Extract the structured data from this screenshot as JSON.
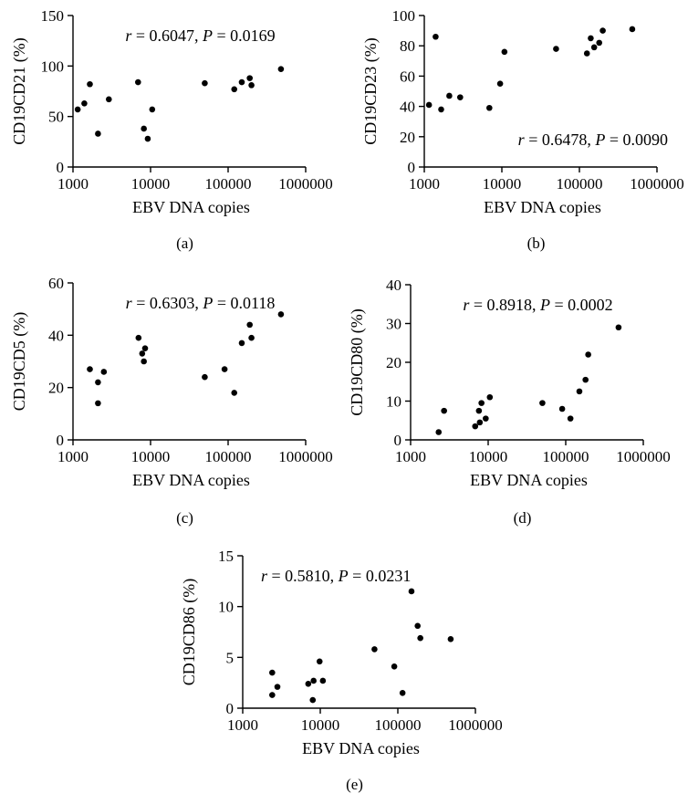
{
  "chart_data": [
    {
      "type": "scatter",
      "panel_label": "(a)",
      "xlabel": "EBV DNA copies",
      "ylabel": "CD19CD21 (%)",
      "x_scale": "log",
      "xlim": [
        1000,
        1000000
      ],
      "x_ticks": [
        1000,
        10000,
        100000,
        1000000
      ],
      "x_tick_labels": [
        "1000",
        "10000",
        "100000",
        "1000000"
      ],
      "ylim": [
        0,
        150
      ],
      "y_ticks": [
        0,
        50,
        100,
        150
      ],
      "y_tick_labels": [
        "0",
        "50",
        "100",
        "150"
      ],
      "annotation": {
        "r": "r",
        "eq1": " = 0.6047, ",
        "p": "P",
        "eq2": " = 0.0169"
      },
      "annotation_position": "top-center",
      "points": [
        {
          "x": 1150,
          "y": 57
        },
        {
          "x": 1400,
          "y": 63
        },
        {
          "x": 1650,
          "y": 82
        },
        {
          "x": 2100,
          "y": 33
        },
        {
          "x": 2900,
          "y": 67
        },
        {
          "x": 6900,
          "y": 84
        },
        {
          "x": 8200,
          "y": 38
        },
        {
          "x": 9200,
          "y": 28
        },
        {
          "x": 10500,
          "y": 57
        },
        {
          "x": 50000,
          "y": 83
        },
        {
          "x": 120000,
          "y": 77
        },
        {
          "x": 150000,
          "y": 84
        },
        {
          "x": 190000,
          "y": 88
        },
        {
          "x": 200000,
          "y": 81
        },
        {
          "x": 480000,
          "y": 97
        }
      ]
    },
    {
      "type": "scatter",
      "panel_label": "(b)",
      "xlabel": "EBV DNA copies",
      "ylabel": "CD19CD23 (%)",
      "x_scale": "log",
      "xlim": [
        1000,
        1000000
      ],
      "x_ticks": [
        1000,
        10000,
        100000,
        1000000
      ],
      "x_tick_labels": [
        "1000",
        "10000",
        "100000",
        "1000000"
      ],
      "ylim": [
        0,
        100
      ],
      "y_ticks": [
        0,
        20,
        40,
        60,
        80,
        100
      ],
      "y_tick_labels": [
        "0",
        "20",
        "40",
        "60",
        "80",
        "100"
      ],
      "annotation": {
        "r": "r",
        "eq1": " = 0.6478, ",
        "p": "P",
        "eq2": " = 0.0090"
      },
      "annotation_position": "bottom-right",
      "points": [
        {
          "x": 1150,
          "y": 41
        },
        {
          "x": 1400,
          "y": 86
        },
        {
          "x": 1650,
          "y": 38
        },
        {
          "x": 2100,
          "y": 47
        },
        {
          "x": 2900,
          "y": 46
        },
        {
          "x": 6900,
          "y": 39
        },
        {
          "x": 9500,
          "y": 55
        },
        {
          "x": 10800,
          "y": 76
        },
        {
          "x": 50000,
          "y": 78
        },
        {
          "x": 125000,
          "y": 75
        },
        {
          "x": 140000,
          "y": 85
        },
        {
          "x": 155000,
          "y": 79
        },
        {
          "x": 180000,
          "y": 82
        },
        {
          "x": 200000,
          "y": 90
        },
        {
          "x": 480000,
          "y": 91
        }
      ]
    },
    {
      "type": "scatter",
      "panel_label": "(c)",
      "xlabel": "EBV DNA copies",
      "ylabel": "CD19CD5 (%)",
      "x_scale": "log",
      "xlim": [
        1000,
        1000000
      ],
      "x_ticks": [
        1000,
        10000,
        100000,
        1000000
      ],
      "x_tick_labels": [
        "1000",
        "10000",
        "100000",
        "1000000"
      ],
      "ylim": [
        0,
        60
      ],
      "y_ticks": [
        0,
        20,
        40,
        60
      ],
      "y_tick_labels": [
        "0",
        "20",
        "40",
        "60"
      ],
      "annotation": {
        "r": "r",
        "eq1": " = 0.6303, ",
        "p": "P",
        "eq2": " = 0.0118"
      },
      "annotation_position": "top-center",
      "points": [
        {
          "x": 1650,
          "y": 27
        },
        {
          "x": 2100,
          "y": 22
        },
        {
          "x": 2100,
          "y": 14
        },
        {
          "x": 2500,
          "y": 26
        },
        {
          "x": 7000,
          "y": 39
        },
        {
          "x": 7800,
          "y": 33
        },
        {
          "x": 8200,
          "y": 30
        },
        {
          "x": 8500,
          "y": 35
        },
        {
          "x": 50000,
          "y": 24
        },
        {
          "x": 90000,
          "y": 27
        },
        {
          "x": 120000,
          "y": 18
        },
        {
          "x": 150000,
          "y": 37
        },
        {
          "x": 190000,
          "y": 44
        },
        {
          "x": 200000,
          "y": 39
        },
        {
          "x": 480000,
          "y": 48
        }
      ]
    },
    {
      "type": "scatter",
      "panel_label": "(d)",
      "xlabel": "EBV DNA copies",
      "ylabel": "CD19CD80 (%)",
      "x_scale": "log",
      "xlim": [
        1000,
        1000000
      ],
      "x_ticks": [
        1000,
        10000,
        100000,
        1000000
      ],
      "x_tick_labels": [
        "1000",
        "10000",
        "100000",
        "1000000"
      ],
      "ylim": [
        0,
        40
      ],
      "y_ticks": [
        0,
        10,
        20,
        30,
        40
      ],
      "y_tick_labels": [
        "0",
        "10",
        "20",
        "30",
        "40"
      ],
      "annotation": {
        "r": "r",
        "eq1": " = 0.8918, ",
        "p": "P",
        "eq2": " = 0.0002"
      },
      "annotation_position": "top-center",
      "points": [
        {
          "x": 2300,
          "y": 2
        },
        {
          "x": 2700,
          "y": 7.5
        },
        {
          "x": 6800,
          "y": 3.5
        },
        {
          "x": 7600,
          "y": 7.5
        },
        {
          "x": 7800,
          "y": 4.5
        },
        {
          "x": 8200,
          "y": 9.5
        },
        {
          "x": 9300,
          "y": 5.5
        },
        {
          "x": 10500,
          "y": 11
        },
        {
          "x": 50000,
          "y": 9.5
        },
        {
          "x": 90000,
          "y": 8
        },
        {
          "x": 115000,
          "y": 5.5
        },
        {
          "x": 150000,
          "y": 12.5
        },
        {
          "x": 180000,
          "y": 15.5
        },
        {
          "x": 195000,
          "y": 22
        },
        {
          "x": 480000,
          "y": 29
        }
      ]
    },
    {
      "type": "scatter",
      "panel_label": "(e)",
      "xlabel": "EBV DNA copies",
      "ylabel": "CD19CD86 (%)",
      "x_scale": "log",
      "xlim": [
        1000,
        1000000
      ],
      "x_ticks": [
        1000,
        10000,
        100000,
        1000000
      ],
      "x_tick_labels": [
        "1000",
        "10000",
        "100000",
        "1000000"
      ],
      "ylim": [
        0,
        15
      ],
      "y_ticks": [
        0,
        5,
        10,
        15
      ],
      "y_tick_labels": [
        "0",
        "5",
        "10",
        "15"
      ],
      "annotation": {
        "r": "r",
        "eq1": " = 0.5810, ",
        "p": "P",
        "eq2": " = 0.0231"
      },
      "annotation_position": "top-left",
      "points": [
        {
          "x": 2400,
          "y": 3.5
        },
        {
          "x": 2400,
          "y": 1.3
        },
        {
          "x": 2800,
          "y": 2.1
        },
        {
          "x": 7000,
          "y": 2.4
        },
        {
          "x": 8000,
          "y": 0.8
        },
        {
          "x": 8200,
          "y": 2.7
        },
        {
          "x": 9800,
          "y": 4.6
        },
        {
          "x": 10800,
          "y": 2.7
        },
        {
          "x": 50000,
          "y": 5.8
        },
        {
          "x": 90000,
          "y": 4.1
        },
        {
          "x": 115000,
          "y": 1.5
        },
        {
          "x": 150000,
          "y": 11.5
        },
        {
          "x": 180000,
          "y": 8.1
        },
        {
          "x": 195000,
          "y": 6.9
        },
        {
          "x": 480000,
          "y": 6.8
        }
      ]
    }
  ]
}
